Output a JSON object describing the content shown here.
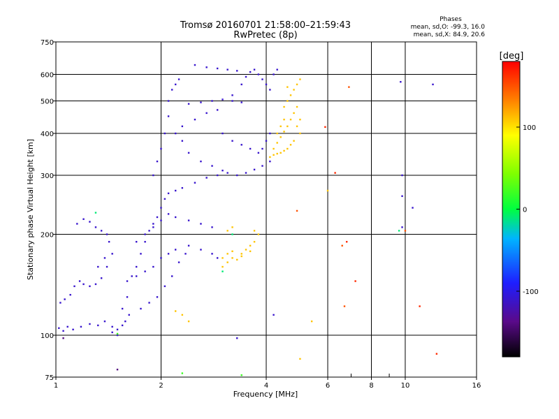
{
  "chart_data": {
    "type": "scatter",
    "title": "Tromsø 20160701 21:58:00–21:59:43",
    "subtitle": "RwPretec (8p)",
    "xlabel": "Frequency [MHz]",
    "ylabel": "Stationary phase Virtual Height [km]",
    "x_scale": "log",
    "y_scale": "log",
    "xlim": [
      1,
      16
    ],
    "ylim": [
      75,
      750
    ],
    "x_ticks": [
      1,
      2,
      4,
      6,
      8,
      10,
      16
    ],
    "x_tick_labels": [
      "1",
      "2",
      "4",
      "6",
      "8",
      "10",
      "16"
    ],
    "y_ticks": [
      75,
      100,
      200,
      300,
      400,
      500,
      600,
      750
    ],
    "y_tick_labels": [
      "75",
      "100",
      "200",
      "300",
      "400",
      "500",
      "600",
      "750"
    ],
    "grid": true,
    "stats": {
      "title": "Phases",
      "line1": "mean, sd,O: -99.3, 16.0",
      "line2": "mean, sd,X:  84.9, 20.6"
    },
    "colorbar": {
      "label": "[deg]",
      "min": -180,
      "max": 180,
      "ticks": [
        100,
        0,
        -100
      ],
      "tick_labels": [
        "100",
        "0",
        "-100"
      ]
    },
    "series": [
      {
        "color_phase": -110,
        "points": [
          [
            1.02,
            105
          ],
          [
            1.05,
            103
          ],
          [
            1.08,
            106
          ],
          [
            1.12,
            104
          ],
          [
            1.18,
            106
          ],
          [
            1.25,
            108
          ],
          [
            1.32,
            107
          ],
          [
            1.38,
            110
          ],
          [
            1.45,
            106
          ],
          [
            1.5,
            104
          ],
          [
            1.55,
            107
          ],
          [
            1.03,
            125
          ],
          [
            1.06,
            128
          ],
          [
            1.1,
            132
          ],
          [
            1.13,
            140
          ],
          [
            1.17,
            145
          ],
          [
            1.2,
            142
          ],
          [
            1.25,
            140
          ],
          [
            1.3,
            142
          ],
          [
            1.35,
            148
          ],
          [
            1.4,
            160
          ],
          [
            1.45,
            175
          ],
          [
            1.15,
            215
          ],
          [
            1.2,
            222
          ],
          [
            1.25,
            218
          ],
          [
            1.3,
            210
          ],
          [
            1.35,
            205
          ],
          [
            1.4,
            200
          ],
          [
            1.42,
            190
          ],
          [
            1.38,
            170
          ],
          [
            1.32,
            160
          ],
          [
            1.55,
            120
          ],
          [
            1.6,
            130
          ],
          [
            1.65,
            150
          ],
          [
            1.7,
            160
          ],
          [
            1.75,
            175
          ],
          [
            1.8,
            190
          ],
          [
            1.85,
            205
          ],
          [
            1.9,
            215
          ],
          [
            1.95,
            225
          ],
          [
            2.0,
            240
          ],
          [
            2.05,
            255
          ],
          [
            2.1,
            265
          ],
          [
            2.2,
            270
          ],
          [
            2.3,
            275
          ],
          [
            2.5,
            285
          ],
          [
            2.7,
            295
          ],
          [
            2.9,
            300
          ],
          [
            3.1,
            305
          ],
          [
            3.3,
            300
          ],
          [
            3.5,
            305
          ],
          [
            3.7,
            312
          ],
          [
            3.9,
            320
          ],
          [
            4.1,
            330
          ],
          [
            1.6,
            145
          ],
          [
            1.7,
            150
          ],
          [
            1.8,
            155
          ],
          [
            1.9,
            160
          ],
          [
            2.0,
            170
          ],
          [
            2.1,
            175
          ],
          [
            2.2,
            180
          ],
          [
            2.4,
            185
          ],
          [
            2.6,
            180
          ],
          [
            2.8,
            175
          ],
          [
            2.9,
            170
          ],
          [
            1.7,
            190
          ],
          [
            1.8,
            200
          ],
          [
            1.9,
            210
          ],
          [
            2.0,
            220
          ],
          [
            2.1,
            230
          ],
          [
            2.2,
            225
          ],
          [
            2.4,
            220
          ],
          [
            2.6,
            215
          ],
          [
            2.8,
            210
          ],
          [
            1.75,
            120
          ],
          [
            1.85,
            125
          ],
          [
            1.95,
            130
          ],
          [
            2.05,
            140
          ],
          [
            2.15,
            150
          ],
          [
            2.25,
            165
          ],
          [
            2.35,
            175
          ],
          [
            1.9,
            300
          ],
          [
            1.95,
            330
          ],
          [
            2.0,
            360
          ],
          [
            2.05,
            400
          ],
          [
            2.1,
            450
          ],
          [
            2.1,
            500
          ],
          [
            2.15,
            540
          ],
          [
            2.2,
            560
          ],
          [
            2.25,
            580
          ],
          [
            2.4,
            490
          ],
          [
            2.6,
            495
          ],
          [
            2.8,
            500
          ],
          [
            3.0,
            505
          ],
          [
            3.2,
            500
          ],
          [
            3.4,
            495
          ],
          [
            2.3,
            420
          ],
          [
            2.5,
            440
          ],
          [
            2.7,
            460
          ],
          [
            2.9,
            470
          ],
          [
            3.2,
            520
          ],
          [
            3.4,
            560
          ],
          [
            3.5,
            590
          ],
          [
            3.6,
            610
          ],
          [
            3.7,
            620
          ],
          [
            3.8,
            600
          ],
          [
            3.9,
            580
          ],
          [
            4.0,
            560
          ],
          [
            4.1,
            540
          ],
          [
            4.2,
            600
          ],
          [
            4.3,
            620
          ],
          [
            2.5,
            640
          ],
          [
            2.7,
            630
          ],
          [
            2.9,
            625
          ],
          [
            3.1,
            620
          ],
          [
            3.3,
            615
          ],
          [
            3.0,
            400
          ],
          [
            3.2,
            380
          ],
          [
            3.4,
            370
          ],
          [
            3.6,
            360
          ],
          [
            3.8,
            350
          ],
          [
            3.9,
            360
          ],
          [
            4.0,
            380
          ],
          [
            4.1,
            400
          ],
          [
            2.2,
            400
          ],
          [
            2.3,
            380
          ],
          [
            2.4,
            350
          ],
          [
            2.6,
            330
          ],
          [
            2.8,
            320
          ],
          [
            3.0,
            310
          ],
          [
            1.5,
            100
          ],
          [
            1.45,
            102
          ],
          [
            1.58,
            110
          ],
          [
            1.62,
            115
          ],
          [
            9.8,
            300
          ],
          [
            9.8,
            260
          ],
          [
            9.8,
            210
          ],
          [
            9.7,
            570
          ],
          [
            12.0,
            560
          ],
          [
            10.5,
            240
          ],
          [
            4.2,
            115
          ],
          [
            3.3,
            98
          ]
        ]
      },
      {
        "color_phase": 110,
        "points": [
          [
            3.0,
            160
          ],
          [
            3.1,
            165
          ],
          [
            3.2,
            170
          ],
          [
            3.3,
            168
          ],
          [
            3.4,
            175
          ],
          [
            3.5,
            180
          ],
          [
            3.6,
            185
          ],
          [
            3.7,
            190
          ],
          [
            3.0,
            170
          ],
          [
            3.1,
            175
          ],
          [
            3.2,
            178
          ],
          [
            3.4,
            172
          ],
          [
            3.6,
            178
          ],
          [
            3.8,
            200
          ],
          [
            3.7,
            205
          ],
          [
            4.1,
            340
          ],
          [
            4.2,
            345
          ],
          [
            4.3,
            348
          ],
          [
            4.4,
            350
          ],
          [
            4.5,
            355
          ],
          [
            4.6,
            360
          ],
          [
            4.7,
            370
          ],
          [
            4.8,
            380
          ],
          [
            4.2,
            360
          ],
          [
            4.3,
            375
          ],
          [
            4.4,
            390
          ],
          [
            4.5,
            405
          ],
          [
            4.6,
            420
          ],
          [
            4.7,
            440
          ],
          [
            4.8,
            460
          ],
          [
            4.9,
            480
          ],
          [
            4.5,
            480
          ],
          [
            4.6,
            500
          ],
          [
            4.7,
            520
          ],
          [
            4.8,
            540
          ],
          [
            4.9,
            560
          ],
          [
            5.0,
            580
          ],
          [
            4.6,
            550
          ],
          [
            4.3,
            400
          ],
          [
            4.4,
            420
          ],
          [
            4.5,
            440
          ],
          [
            4.9,
            420
          ],
          [
            5.0,
            400
          ],
          [
            5.0,
            440
          ],
          [
            2.2,
            118
          ],
          [
            2.3,
            115
          ],
          [
            2.4,
            110
          ],
          [
            3.1,
            205
          ],
          [
            3.2,
            210
          ],
          [
            5.0,
            85
          ],
          [
            5.4,
            110
          ],
          [
            6.0,
            270
          ]
        ]
      },
      {
        "color_phase": -10,
        "points": [
          [
            3.2,
            200
          ],
          [
            3.0,
            155
          ],
          [
            1.3,
            232
          ],
          [
            9.6,
            205
          ]
        ]
      },
      {
        "color_phase": 165,
        "points": [
          [
            7.2,
            145
          ],
          [
            6.3,
            305
          ],
          [
            5.9,
            418
          ],
          [
            11.0,
            122
          ],
          [
            6.8,
            190
          ],
          [
            12.3,
            88
          ]
        ]
      },
      {
        "color_phase": 150,
        "points": [
          [
            4.9,
            235
          ],
          [
            6.6,
            185
          ],
          [
            6.7,
            122
          ],
          [
            10.0,
            205
          ],
          [
            6.9,
            550
          ]
        ]
      },
      {
        "color_phase": 20,
        "points": [
          [
            2.3,
            77
          ],
          [
            3.4,
            76
          ],
          [
            1.5,
            101
          ]
        ]
      },
      {
        "color_phase": -140,
        "points": [
          [
            1.5,
            79
          ],
          [
            1.05,
            98
          ]
        ]
      }
    ]
  }
}
